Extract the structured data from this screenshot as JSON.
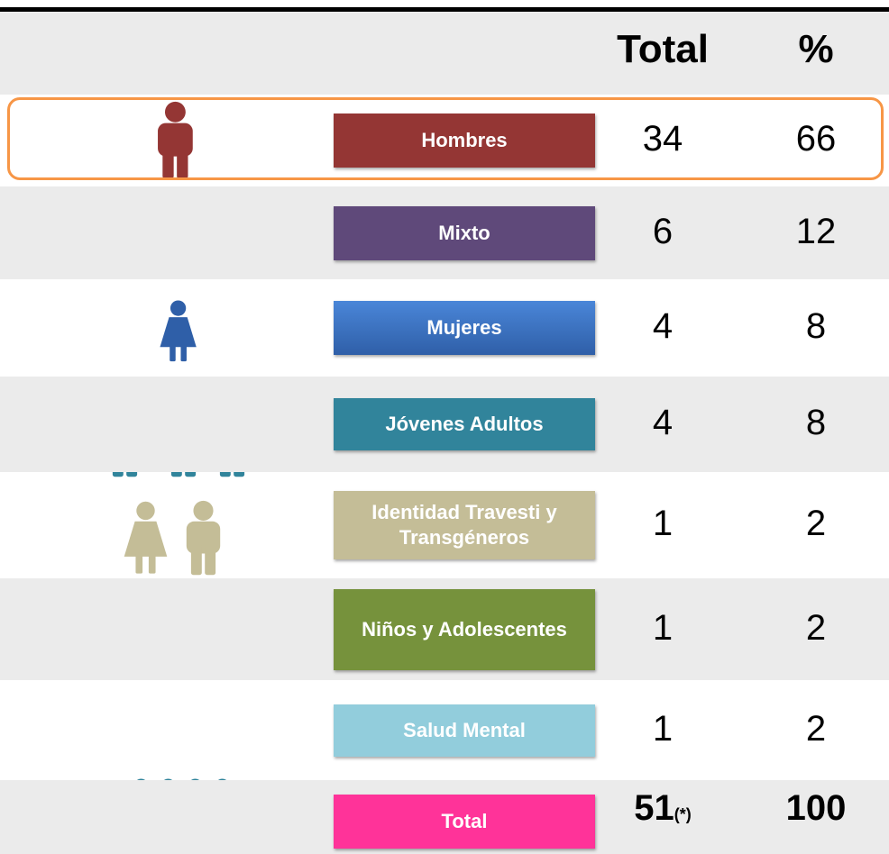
{
  "header": {
    "total": "Total",
    "percent": "%"
  },
  "rows": [
    {
      "label": "Hombres",
      "total": 34,
      "percent": 66
    },
    {
      "label": "Mixto",
      "total": 6,
      "percent": 12
    },
    {
      "label": "Mujeres",
      "total": 4,
      "percent": 8
    },
    {
      "label": "Jóvenes Adultos",
      "total": 4,
      "percent": 8
    },
    {
      "label": "Identidad Travesti y Transgéneros",
      "total": 1,
      "percent": 2
    },
    {
      "label": "Niños y Adolescentes",
      "total": 1,
      "percent": 2
    },
    {
      "label": "Salud Mental",
      "total": 1,
      "percent": 2
    }
  ],
  "total_row": {
    "label": "Total",
    "total": 51,
    "note": "(*)",
    "percent": 100
  }
}
